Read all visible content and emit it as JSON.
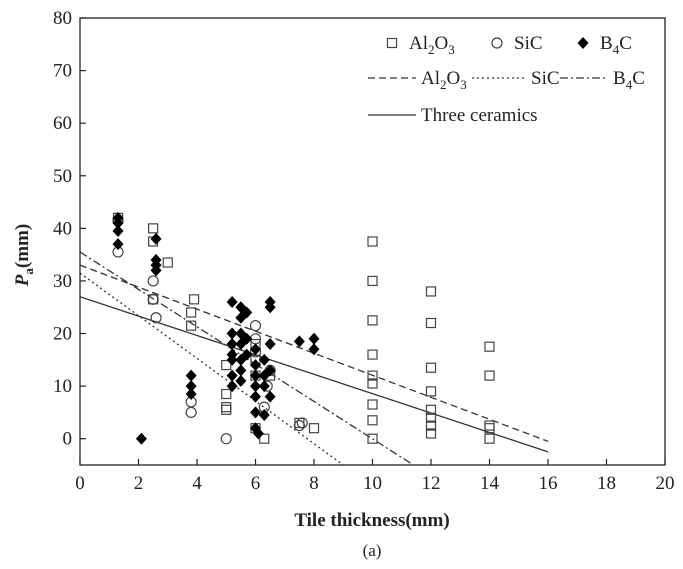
{
  "chart_data": {
    "type": "scatter",
    "caption": "(a)",
    "xlabel": "Tile thickness(mm)",
    "ylabel": "P",
    "ylabel_sub": "a",
    "ylabel_unit": "(mm)",
    "xlim": [
      0,
      20
    ],
    "ylim": [
      -5,
      80
    ],
    "xticks": [
      0,
      2,
      4,
      6,
      8,
      10,
      12,
      14,
      16,
      18,
      20
    ],
    "yticks": [
      0,
      10,
      20,
      30,
      40,
      50,
      60,
      70,
      80
    ],
    "grid": false,
    "legend_position": "top-right",
    "series": [
      {
        "name": "Al2O3",
        "label_main": "Al",
        "label_sub1": "2",
        "label_mid": "O",
        "label_sub2": "3",
        "marker": "square-open",
        "points": [
          [
            1.3,
            42
          ],
          [
            2.5,
            40
          ],
          [
            2.5,
            37.5
          ],
          [
            3,
            33.5
          ],
          [
            2.5,
            26.5
          ],
          [
            3.9,
            26.5
          ],
          [
            3.8,
            24
          ],
          [
            3.8,
            21.5
          ],
          [
            5,
            14
          ],
          [
            5,
            8.5
          ],
          [
            5,
            6
          ],
          [
            5,
            5.5
          ],
          [
            6,
            18
          ],
          [
            6,
            15
          ],
          [
            6,
            12
          ],
          [
            6,
            2
          ],
          [
            6.3,
            0
          ],
          [
            6.5,
            12
          ],
          [
            7.5,
            3
          ],
          [
            8,
            2
          ],
          [
            10,
            37.5
          ],
          [
            10,
            30
          ],
          [
            10,
            22.5
          ],
          [
            10,
            16
          ],
          [
            10,
            12
          ],
          [
            10,
            10.5
          ],
          [
            10,
            6.5
          ],
          [
            10,
            3.5
          ],
          [
            10,
            0
          ],
          [
            12,
            28
          ],
          [
            12,
            22
          ],
          [
            12,
            13.5
          ],
          [
            12,
            9
          ],
          [
            12,
            5.5
          ],
          [
            12,
            4
          ],
          [
            12,
            2.5
          ],
          [
            12,
            1
          ],
          [
            14,
            17.5
          ],
          [
            14,
            12
          ],
          [
            14,
            2.5
          ],
          [
            14,
            2
          ],
          [
            14,
            0
          ]
        ]
      },
      {
        "name": "SiC",
        "marker": "circle-open",
        "points": [
          [
            1.3,
            35.5
          ],
          [
            1.3,
            41.5
          ],
          [
            2.5,
            30
          ],
          [
            2.5,
            26.5
          ],
          [
            2.6,
            23
          ],
          [
            3.8,
            7
          ],
          [
            3.8,
            5
          ],
          [
            5,
            0
          ],
          [
            6,
            21.5
          ],
          [
            6,
            19
          ],
          [
            6,
            16.5
          ],
          [
            6.5,
            13
          ],
          [
            6.4,
            10
          ],
          [
            6.3,
            6
          ],
          [
            7.6,
            3
          ],
          [
            7.5,
            2.5
          ]
        ]
      },
      {
        "name": "B4C",
        "label_main": "B",
        "label_sub1": "4",
        "label_mid": "C",
        "marker": "diamond-filled",
        "points": [
          [
            1.3,
            42
          ],
          [
            1.3,
            41
          ],
          [
            1.3,
            39.5
          ],
          [
            1.3,
            37
          ],
          [
            2.1,
            0
          ],
          [
            2.6,
            38
          ],
          [
            2.6,
            34
          ],
          [
            2.6,
            33
          ],
          [
            2.6,
            32
          ],
          [
            3.8,
            12
          ],
          [
            3.8,
            10
          ],
          [
            3.8,
            8.5
          ],
          [
            5.2,
            26
          ],
          [
            5.2,
            20
          ],
          [
            5.2,
            18
          ],
          [
            5.2,
            16
          ],
          [
            5.2,
            15
          ],
          [
            5.2,
            12
          ],
          [
            5.2,
            10
          ],
          [
            5.5,
            25
          ],
          [
            5.5,
            23
          ],
          [
            5.5,
            20
          ],
          [
            5.5,
            18
          ],
          [
            5.5,
            15
          ],
          [
            5.5,
            13
          ],
          [
            5.5,
            11
          ],
          [
            5.7,
            24
          ],
          [
            5.7,
            19
          ],
          [
            5.7,
            16
          ],
          [
            6,
            17
          ],
          [
            6,
            14
          ],
          [
            6,
            12
          ],
          [
            6,
            10
          ],
          [
            6,
            8
          ],
          [
            6,
            5
          ],
          [
            6,
            2
          ],
          [
            6.1,
            1
          ],
          [
            6.3,
            15
          ],
          [
            6.3,
            12
          ],
          [
            6.3,
            10
          ],
          [
            6.3,
            4.5
          ],
          [
            6.5,
            25
          ],
          [
            6.5,
            26
          ],
          [
            6.5,
            18
          ],
          [
            6.5,
            13
          ],
          [
            6.5,
            8
          ],
          [
            7.5,
            18.5
          ],
          [
            8,
            19
          ],
          [
            8,
            17
          ]
        ]
      }
    ],
    "fit_lines": [
      {
        "name": "Al2O3",
        "style": "dashed",
        "from": [
          0,
          33
        ],
        "to": [
          16,
          -0.5
        ]
      },
      {
        "name": "SiC",
        "style": "dotted",
        "from": [
          0,
          31.5
        ],
        "to": [
          9,
          -5
        ]
      },
      {
        "name": "B4C",
        "style": "dash-dot",
        "from": [
          0,
          35.5
        ],
        "to": [
          11.4,
          -5
        ]
      },
      {
        "name": "Three ceramics",
        "style": "solid",
        "from": [
          0,
          27
        ],
        "to": [
          16,
          -2.5
        ]
      }
    ],
    "legend": {
      "markers_row": [
        {
          "series": "Al2O3",
          "marker": "square-open",
          "main": "Al",
          "sub1": "2",
          "mid": "O",
          "sub2": "3"
        },
        {
          "series": "SiC",
          "marker": "circle-open",
          "main": "SiC"
        },
        {
          "series": "B4C",
          "marker": "diamond-filled",
          "main": "B",
          "sub1": "4",
          "mid": "C"
        }
      ],
      "lines_row": [
        {
          "series": "Al2O3",
          "style": "dashed",
          "main": "Al",
          "sub1": "2",
          "mid": "O",
          "sub2": "3"
        },
        {
          "series": "SiC",
          "style": "dotted",
          "main": "SiC"
        },
        {
          "series": "B4C",
          "style": "dash-dot",
          "main": "B",
          "sub1": "4",
          "mid": "C"
        }
      ],
      "combined_line": {
        "style": "solid",
        "label": "Three ceramics"
      }
    }
  }
}
